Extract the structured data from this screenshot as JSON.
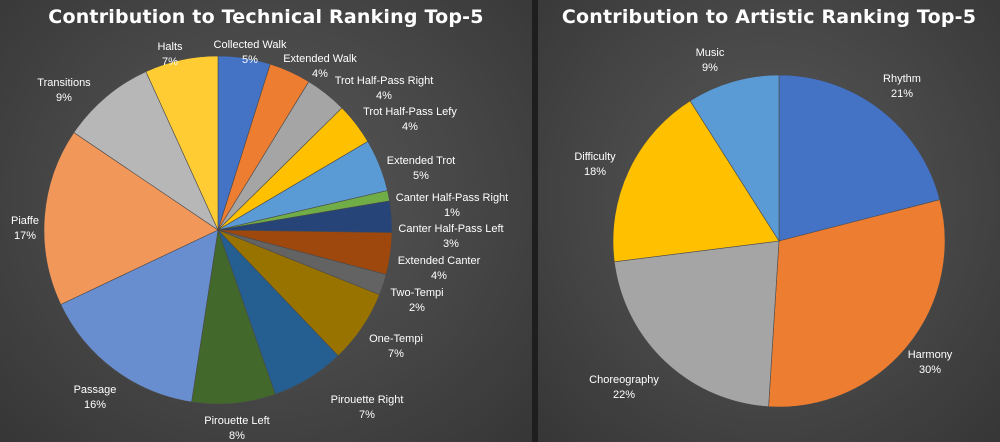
{
  "chart_data": [
    {
      "type": "pie",
      "title": "Contribution to Technical Ranking Top-5",
      "categories": [
        "Collected Walk",
        "Extended Walk",
        "Trot Half-Pass Right",
        "Trot Half-Pass Lefy",
        "Extended Trot",
        "Canter Half-Pass Right",
        "Canter Half-Pass Left",
        "Extended Canter",
        "Two-Tempi",
        "One-Tempi",
        "Pirouette Right",
        "Pirouette Left",
        "Passage",
        "Piaffe",
        "Transitions",
        "Halts"
      ],
      "values": [
        5,
        4,
        4,
        4,
        5,
        1,
        3,
        4,
        2,
        7,
        7,
        8,
        16,
        17,
        9,
        7
      ],
      "labels": [
        "5%",
        "4%",
        "4%",
        "4%",
        "5%",
        "1%",
        "3%",
        "4%",
        "2%",
        "7%",
        "7%",
        "8%",
        "16%",
        "17%",
        "9%",
        "7%"
      ],
      "colors": [
        "#4472c4",
        "#ed7d31",
        "#a5a5a5",
        "#ffc000",
        "#5b9bd5",
        "#70ad47",
        "#264478",
        "#9e480e",
        "#636363",
        "#997300",
        "#255e91",
        "#43682b",
        "#698ed0",
        "#f1975a",
        "#b7b7b7",
        "#ffcd33"
      ]
    },
    {
      "type": "pie",
      "title": "Contribution to Artistic Ranking Top-5",
      "categories": [
        "Rhythm",
        "Harmony",
        "Choreography",
        "Difficulty",
        "Music"
      ],
      "values": [
        21,
        30,
        22,
        18,
        9
      ],
      "labels": [
        "21%",
        "30%",
        "22%",
        "18%",
        "9%"
      ],
      "colors": [
        "#4472c4",
        "#ed7d31",
        "#a5a5a5",
        "#ffc000",
        "#5b9bd5"
      ]
    }
  ]
}
